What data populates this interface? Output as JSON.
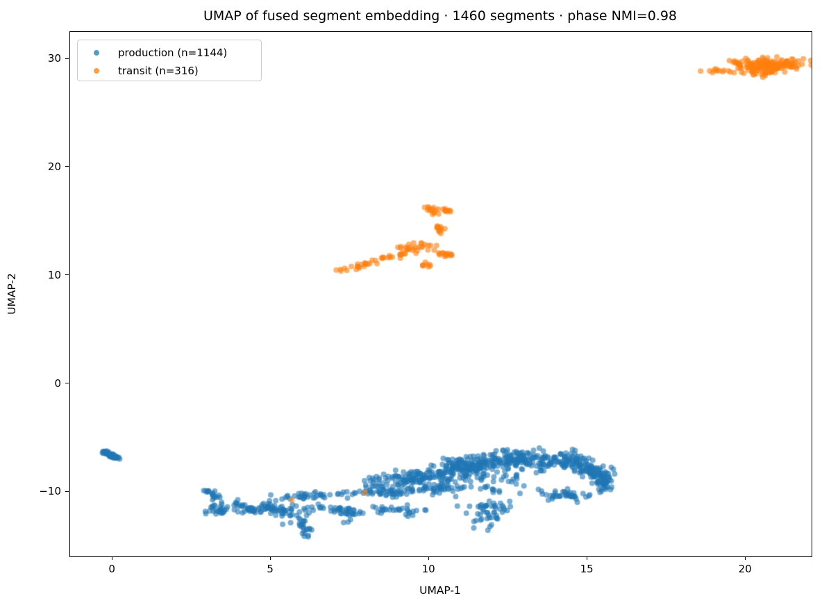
{
  "chart_data": {
    "type": "scatter",
    "title": "UMAP of fused segment embedding · 1460 segments · phase NMI=0.98",
    "xlabel": "UMAP-1",
    "ylabel": "UMAP-2",
    "xlim": [
      -1.34,
      22.08
    ],
    "ylim": [
      -15.95,
      32.51
    ],
    "xticks": [
      0,
      5,
      10,
      15,
      20
    ],
    "xtick_labels": [
      "0",
      "5",
      "10",
      "15",
      "20"
    ],
    "yticks": [
      30,
      20,
      10,
      0,
      -10
    ],
    "ytick_labels": [
      "30",
      "20",
      "10",
      "0",
      "−10"
    ],
    "grid": false,
    "legend_position": "upper left",
    "total_points": 1460,
    "marker": {
      "radius_px": 4.0,
      "alpha": 0.6
    },
    "seed": 42,
    "series": [
      {
        "name": "production",
        "legend_label": "production (n=1144)",
        "color": "#1f77b4",
        "n": 1144,
        "clusters": [
          {
            "type": "line",
            "from": [
              -0.28,
              -6.25
            ],
            "to": [
              0.18,
              -6.9
            ],
            "jx": 0.05,
            "jy": 0.05,
            "n": 55
          },
          {
            "type": "line",
            "from": [
              8.0,
              -9.4
            ],
            "to": [
              10.5,
              -8.1
            ],
            "jx": 0.25,
            "jy": 0.4,
            "n": 110
          },
          {
            "type": "line",
            "from": [
              10.5,
              -8.0
            ],
            "to": [
              12.5,
              -7.0
            ],
            "jx": 0.3,
            "jy": 0.45,
            "n": 170
          },
          {
            "type": "line",
            "from": [
              12.5,
              -7.05
            ],
            "to": [
              14.6,
              -7.1
            ],
            "jx": 0.3,
            "jy": 0.42,
            "n": 145
          },
          {
            "type": "line",
            "from": [
              14.6,
              -7.3
            ],
            "to": [
              15.6,
              -8.7
            ],
            "jx": 0.2,
            "jy": 0.4,
            "n": 110
          },
          {
            "type": "line",
            "from": [
              15.45,
              -8.9
            ],
            "to": [
              15.55,
              -9.9
            ],
            "jx": 0.12,
            "jy": 0.2,
            "n": 25
          },
          {
            "type": "line",
            "from": [
              9.0,
              -9.2
            ],
            "to": [
              12.8,
              -8.3
            ],
            "jx": 0.4,
            "jy": 0.35,
            "n": 60
          },
          {
            "type": "line",
            "from": [
              2.95,
              -9.8
            ],
            "to": [
              3.4,
              -10.55
            ],
            "jx": 0.08,
            "jy": 0.08,
            "n": 18
          },
          {
            "type": "line",
            "from": [
              3.85,
              -10.8
            ],
            "to": [
              4.5,
              -11.9
            ],
            "jx": 0.1,
            "jy": 0.12,
            "n": 20
          },
          {
            "type": "line",
            "from": [
              4.5,
              -11.9
            ],
            "to": [
              5.15,
              -10.9
            ],
            "jx": 0.1,
            "jy": 0.12,
            "n": 20
          },
          {
            "type": "line",
            "from": [
              5.3,
              -10.5
            ],
            "to": [
              8.0,
              -10.05
            ],
            "jx": 0.2,
            "jy": 0.18,
            "n": 45
          },
          {
            "type": "line",
            "from": [
              8.0,
              -10.1
            ],
            "to": [
              10.9,
              -9.6
            ],
            "jx": 0.25,
            "jy": 0.22,
            "n": 76
          },
          {
            "type": "gauss",
            "c": [
              3.3,
              -11.6
            ],
            "sx": 0.22,
            "sy": 0.3,
            "n": 30
          },
          {
            "type": "line",
            "from": [
              4.0,
              -11.5
            ],
            "to": [
              5.3,
              -11.7
            ],
            "jx": 0.18,
            "jy": 0.18,
            "n": 25
          },
          {
            "type": "gauss",
            "c": [
              5.55,
              -11.9
            ],
            "sx": 0.3,
            "sy": 0.35,
            "n": 30
          },
          {
            "type": "line",
            "from": [
              6.3,
              -11.5
            ],
            "to": [
              7.5,
              -11.6
            ],
            "jx": 0.18,
            "jy": 0.18,
            "n": 25
          },
          {
            "type": "gauss",
            "c": [
              7.5,
              -12.0
            ],
            "sx": 0.22,
            "sy": 0.35,
            "n": 20
          },
          {
            "type": "line",
            "from": [
              8.2,
              -11.6
            ],
            "to": [
              9.6,
              -11.8
            ],
            "jx": 0.22,
            "jy": 0.2,
            "n": 30
          },
          {
            "type": "line",
            "from": [
              5.92,
              -12.5
            ],
            "to": [
              6.1,
              -14.1
            ],
            "jx": 0.1,
            "jy": 0.15,
            "n": 22
          },
          {
            "type": "gauss",
            "c": [
              12.0,
              -12.0
            ],
            "sx": 0.3,
            "sy": 0.6,
            "n": 35
          },
          {
            "type": "line",
            "from": [
              11.35,
              -11.3
            ],
            "to": [
              12.5,
              -11.4
            ],
            "jx": 0.15,
            "jy": 0.12,
            "n": 15
          },
          {
            "type": "gauss",
            "c": [
              14.2,
              -10.3
            ],
            "sx": 0.4,
            "sy": 0.3,
            "n": 40
          },
          {
            "type": "gauss",
            "c": [
              12.4,
              -9.8
            ],
            "sx": 0.7,
            "sy": 0.55,
            "n": 18
          }
        ]
      },
      {
        "name": "transit",
        "legend_label": "transit (n=316)",
        "color": "#ff7f0e",
        "n": 316,
        "clusters": [
          {
            "type": "line",
            "from": [
              18.55,
              29.0
            ],
            "to": [
              19.85,
              28.75
            ],
            "jx": 0.1,
            "jy": 0.1,
            "n": 14
          },
          {
            "type": "line",
            "from": [
              19.5,
              30.0
            ],
            "to": [
              19.9,
              29.2
            ],
            "jx": 0.08,
            "jy": 0.1,
            "n": 12
          },
          {
            "type": "gauss",
            "c": [
              21.0,
              29.5
            ],
            "sx": 0.45,
            "sy": 0.32,
            "n": 125
          },
          {
            "type": "gauss",
            "c": [
              20.3,
              29.15
            ],
            "sx": 0.22,
            "sy": 0.25,
            "n": 30
          },
          {
            "type": "gauss",
            "c": [
              20.6,
              28.7
            ],
            "sx": 0.3,
            "sy": 0.18,
            "n": 10
          },
          {
            "type": "line",
            "from": [
              7.05,
              10.35
            ],
            "to": [
              9.4,
              12.2
            ],
            "jx": 0.12,
            "jy": 0.12,
            "n": 40
          },
          {
            "type": "gauss",
            "c": [
              9.7,
              12.55
            ],
            "sx": 0.28,
            "sy": 0.22,
            "n": 25
          },
          {
            "type": "line",
            "from": [
              9.95,
              16.35
            ],
            "to": [
              10.3,
              15.5
            ],
            "jx": 0.08,
            "jy": 0.08,
            "n": 14
          },
          {
            "type": "line",
            "from": [
              10.35,
              16.25
            ],
            "to": [
              10.65,
              15.9
            ],
            "jx": 0.08,
            "jy": 0.08,
            "n": 10
          },
          {
            "type": "line",
            "from": [
              10.3,
              14.6
            ],
            "to": [
              10.35,
              13.75
            ],
            "jx": 0.06,
            "jy": 0.08,
            "n": 12
          },
          {
            "type": "line",
            "from": [
              10.25,
              12.1
            ],
            "to": [
              10.8,
              11.75
            ],
            "jx": 0.1,
            "jy": 0.08,
            "n": 14
          },
          {
            "type": "line",
            "from": [
              9.75,
              11.3
            ],
            "to": [
              9.95,
              10.85
            ],
            "jx": 0.07,
            "jy": 0.07,
            "n": 8
          },
          {
            "type": "points",
            "pts": [
              [
                5.66,
                -10.75
              ],
              [
                7.97,
                -10.05
              ]
            ],
            "n": 2
          }
        ]
      }
    ]
  }
}
